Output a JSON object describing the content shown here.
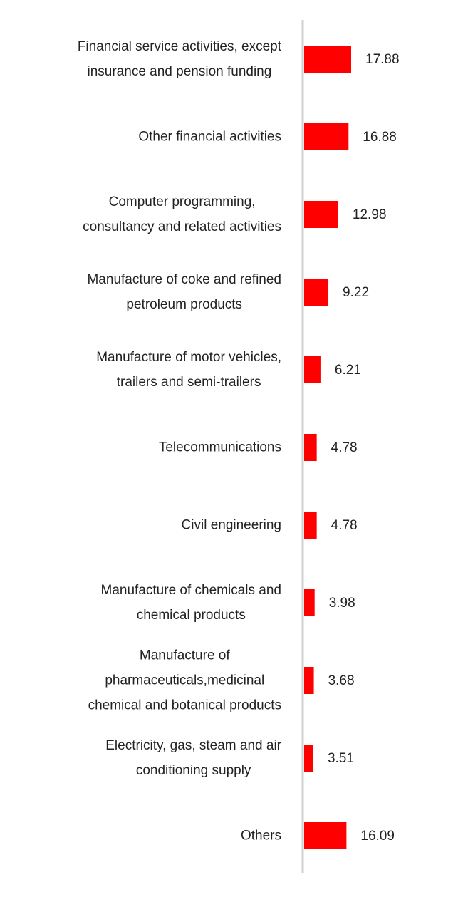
{
  "chart_data": {
    "type": "bar",
    "orientation": "horizontal",
    "color": "#ff0000",
    "categories": [
      "Financial service activities, except\ninsurance and pension funding",
      "Other financial activities",
      "Computer programming,\nconsultancy and related activities",
      "Manufacture of coke and refined\npetroleum products",
      "Manufacture of motor vehicles,\ntrailers and semi-trailers",
      "Telecommunications",
      "Civil engineering",
      "Manufacture of chemicals and\nchemical products",
      "Manufacture of\npharmaceuticals,medicinal\nchemical and botanical products",
      "Electricity, gas, steam and air\nconditioning supply",
      "Others"
    ],
    "values": [
      17.88,
      16.88,
      12.98,
      9.22,
      6.21,
      4.78,
      4.78,
      3.98,
      3.68,
      3.51,
      16.09
    ]
  }
}
